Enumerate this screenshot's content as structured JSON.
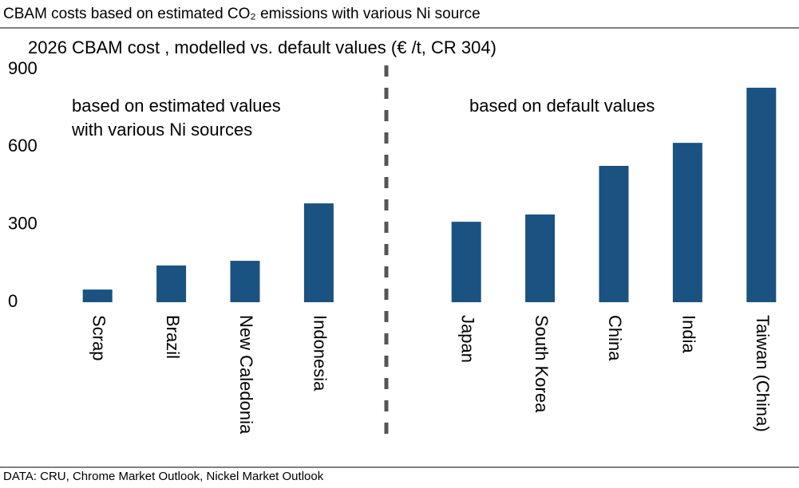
{
  "chart_data": {
    "type": "bar",
    "title": "CBAM costs based on estimated CO₂ emissions with various Ni source",
    "subtitle": "2026 CBAM cost , modelled vs. default values (€ /t, CR 304)",
    "source": "DATA: CRU, Chrome Market Outlook, Nickel Market Outlook",
    "annotations": [
      "based on estimated values",
      "with various Ni sources",
      "based on default values"
    ],
    "categories": [
      "Scrap",
      "Brazil",
      "New Caledonia",
      "Indonesia",
      null,
      "Japan",
      "South Korea",
      "China",
      "India",
      "Taiwan (China)"
    ],
    "values": [
      49,
      142,
      160,
      382,
      null,
      311,
      339,
      527,
      616,
      829
    ],
    "color": "#1a5282",
    "ylim": [
      0,
      900
    ],
    "yticks": [
      0,
      300,
      600,
      900
    ],
    "grid": false
  }
}
